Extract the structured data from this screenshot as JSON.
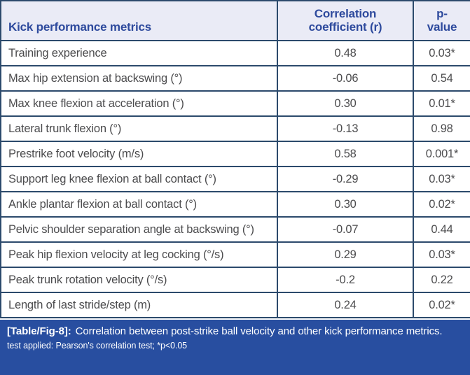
{
  "table": {
    "header": {
      "metric_label": "Kick performance metrics",
      "correlation_label": "Correlation coefficient (r)",
      "pvalue_label": "p-value"
    },
    "rows": [
      {
        "metric": "Training experience",
        "r": "0.48",
        "p": "0.03*"
      },
      {
        "metric": "Max hip extension at backswing (°)",
        "r": "-0.06",
        "p": "0.54"
      },
      {
        "metric": "Max knee flexion at acceleration (°)",
        "r": "0.30",
        "p": "0.01*"
      },
      {
        "metric": "Lateral trunk flexion (°)",
        "r": "-0.13",
        "p": "0.98"
      },
      {
        "metric": "Prestrike foot velocity (m/s)",
        "r": "0.58",
        "p": "0.001*"
      },
      {
        "metric": "Support leg knee flexion at ball contact (°)",
        "r": "-0.29",
        "p": "0.03*"
      },
      {
        "metric": "Ankle plantar flexion at ball contact (°)",
        "r": "0.30",
        "p": "0.02*"
      },
      {
        "metric": "Pelvic shoulder separation angle at backswing (°)",
        "r": "-0.07",
        "p": "0.44"
      },
      {
        "metric": "Peak hip flexion velocity at leg cocking (°/s)",
        "r": "0.29",
        "p": "0.03*"
      },
      {
        "metric": "Peak trunk rotation velocity (°/s)",
        "r": "-0.2",
        "p": "0.22"
      },
      {
        "metric": "Length of last stride/step (m)",
        "r": "0.24",
        "p": "0.02*"
      }
    ]
  },
  "caption": {
    "label": "[Table/Fig-8]:",
    "text": "Correlation between post-strike ball velocity and other kick performance metrics.",
    "note": "test applied: Pearson's correlation test; *p<0.05"
  },
  "colors": {
    "border": "#2c4a6c",
    "header_bg": "#eaebf6",
    "header_text": "#2e4a9d",
    "body_text": "#4c4c4e",
    "caption_bg": "#284ea0",
    "caption_text": "#ffffff"
  }
}
